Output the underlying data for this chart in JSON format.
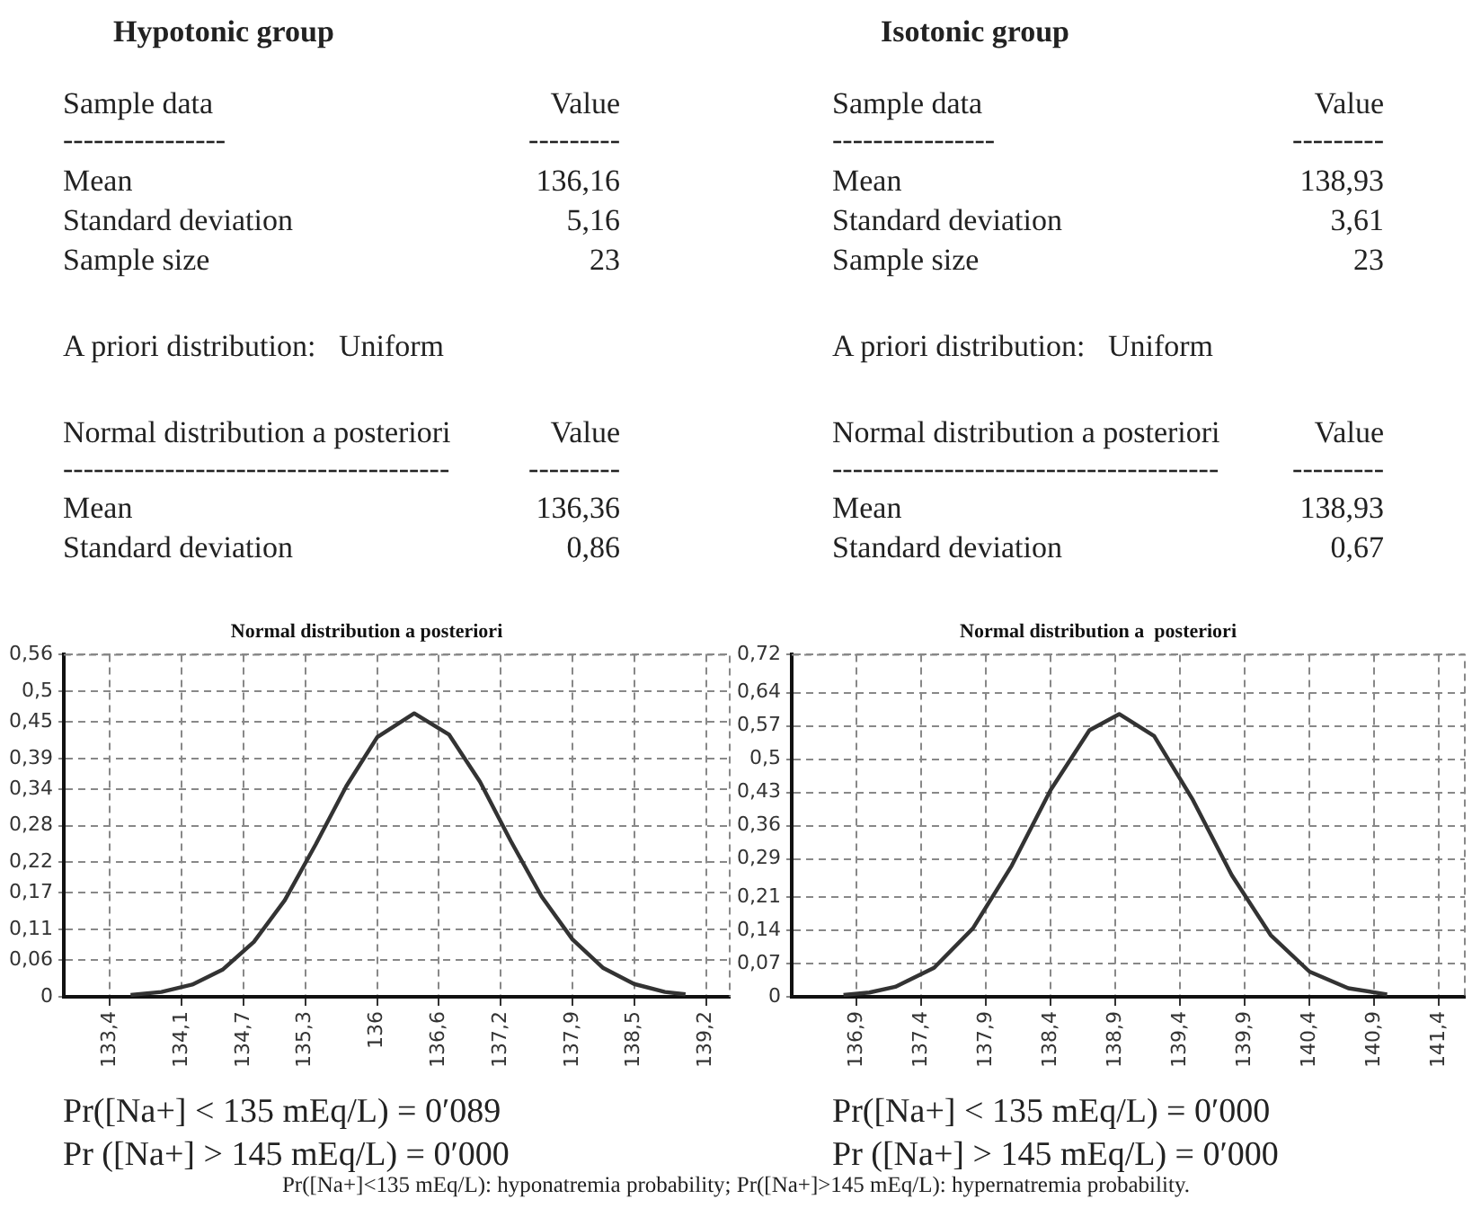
{
  "chart_data": [
    {
      "type": "line",
      "title": "Hypotonic group",
      "subtitle": "Normal distribution a posteriori",
      "annotations": [
        "Sample data",
        "Value",
        "----------------",
        "---------",
        "Mean",
        "136,16",
        "Standard deviation",
        "5,16",
        "Sample size",
        "23",
        "A priori distribution:   Uniform",
        "Normal distribution a posteriori",
        "Value",
        "--------------------------------------",
        "---------",
        "Mean",
        "136,36",
        "Standard deviation",
        "0,86",
        "Pr([Na+] < 135 mEq/L) = 0′089",
        "Pr ([Na+] > 145 mEq/L) = 0′000"
      ],
      "x": [
        133.6,
        133.9,
        134.2,
        134.5,
        134.8,
        135.1,
        135.4,
        135.7,
        136.0,
        136.36,
        136.7,
        137.0,
        137.3,
        137.6,
        137.9,
        138.2,
        138.5,
        138.8,
        139.0
      ],
      "series": [
        {
          "color": "#333333",
          "values": [
            0.003,
            0.008,
            0.02,
            0.045,
            0.09,
            0.158,
            0.249,
            0.345,
            0.425,
            0.464,
            0.429,
            0.352,
            0.255,
            0.164,
            0.094,
            0.047,
            0.021,
            0.008,
            0.004
          ]
        }
      ],
      "xlim": [
        132.95,
        139.43
      ],
      "xticks": [
        {
          "value": 133.4,
          "label": "133,4"
        },
        {
          "value": 134.1,
          "label": "134,1"
        },
        {
          "value": 134.7,
          "label": "134,7"
        },
        {
          "value": 135.3,
          "label": "135,3"
        },
        {
          "value": 136,
          "label": "136"
        },
        {
          "value": 136.6,
          "label": "136,6"
        },
        {
          "value": 137.2,
          "label": "137,2"
        },
        {
          "value": 137.9,
          "label": "137,9"
        },
        {
          "value": 138.5,
          "label": "138,5"
        },
        {
          "value": 139.2,
          "label": "139,2"
        }
      ],
      "ylim": [
        0,
        0.56
      ],
      "yticks": [
        0,
        {
          "value": 0.06,
          "label": "0,06"
        },
        {
          "value": 0.11,
          "label": "0,11"
        },
        {
          "value": 0.17,
          "label": "0,17"
        },
        {
          "value": 0.22,
          "label": "0,22"
        },
        {
          "value": 0.28,
          "label": "0,28"
        },
        {
          "value": 0.34,
          "label": "0,34"
        },
        {
          "value": 0.39,
          "label": "0,39"
        },
        {
          "value": 0.45,
          "label": "0,45"
        },
        {
          "value": 0.5,
          "label": "0,5"
        },
        {
          "value": 0.56,
          "label": "0,56"
        }
      ],
      "grid": true
    },
    {
      "type": "line",
      "title": "Isotonic group",
      "subtitle": "Normal distribution a  posteriori",
      "annotations": [
        "Sample data",
        "Value",
        "----------------",
        "---------",
        "Mean",
        "138,93",
        "Standard deviation",
        "3,61",
        "Sample size",
        "23",
        "A priori distribution:   Uniform",
        "Normal distribution a posteriori",
        "Value",
        "--------------------------------------",
        "---------",
        "Mean",
        "138,93",
        "Standard deviation",
        "0,67",
        "Pr([Na+] < 135 mEq/L) = 0′000",
        "Pr ([Na+] > 145 mEq/L) = 0′000"
      ],
      "x": [
        136.8,
        137.0,
        137.2,
        137.5,
        137.8,
        138.1,
        138.4,
        138.7,
        138.93,
        139.2,
        139.5,
        139.8,
        140.1,
        140.4,
        140.7,
        141.0
      ],
      "series": [
        {
          "color": "#333333",
          "values": [
            0.004,
            0.009,
            0.021,
            0.061,
            0.144,
            0.276,
            0.435,
            0.561,
            0.595,
            0.549,
            0.414,
            0.256,
            0.13,
            0.053,
            0.018,
            0.005
          ]
        }
      ],
      "xlim": [
        136.4,
        141.6
      ],
      "xticks": [
        {
          "value": 136.9,
          "label": "136,9"
        },
        {
          "value": 137.4,
          "label": "137,4"
        },
        {
          "value": 137.9,
          "label": "137,9"
        },
        {
          "value": 138.4,
          "label": "138,4"
        },
        {
          "value": 138.9,
          "label": "138,9"
        },
        {
          "value": 139.4,
          "label": "139,4"
        },
        {
          "value": 139.9,
          "label": "139,9"
        },
        {
          "value": 140.4,
          "label": "140,4"
        },
        {
          "value": 140.9,
          "label": "140,9"
        },
        {
          "value": 141.4,
          "label": "141,4"
        }
      ],
      "ylim": [
        0,
        0.72
      ],
      "yticks": [
        0,
        {
          "value": 0.07,
          "label": "0,07"
        },
        {
          "value": 0.14,
          "label": "0,14"
        },
        {
          "value": 0.21,
          "label": "0,21"
        },
        {
          "value": 0.29,
          "label": "0,29"
        },
        {
          "value": 0.36,
          "label": "0,36"
        },
        {
          "value": 0.43,
          "label": "0,43"
        },
        {
          "value": 0.5,
          "label": "0,5"
        },
        {
          "value": 0.57,
          "label": "0,57"
        },
        {
          "value": 0.64,
          "label": "0,64"
        },
        {
          "value": 0.72,
          "label": "0,72"
        }
      ],
      "grid": true
    },
    {
      "type": "other",
      "annotations": [
        "Pr([Na+]<135 mEq/L): hyponatremia probability; Pr([Na+]>145 mEq/L): hypernatremia probability."
      ]
    }
  ]
}
